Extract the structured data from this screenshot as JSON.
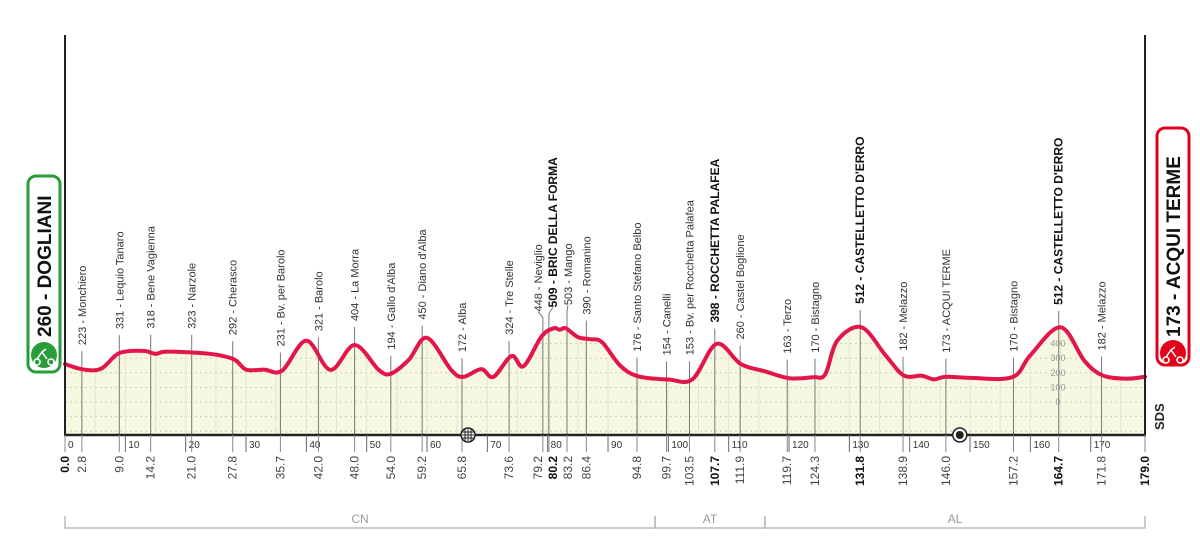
{
  "chart_data": {
    "type": "area",
    "xlabel": "",
    "ylabel": "",
    "xlim": [
      0,
      179
    ],
    "x_unit": "km",
    "y_unit": "m",
    "grid": true,
    "line_color": "#e2164a",
    "fill_color": "#f7f8e3",
    "x_ticks": [
      0,
      10,
      20,
      30,
      40,
      50,
      60,
      70,
      80,
      90,
      100,
      110,
      120,
      130,
      140,
      150,
      160,
      170
    ],
    "elevation_scale": [
      0,
      100,
      200,
      300,
      400
    ],
    "start": {
      "label": "260 - DOGLIANI",
      "color": "#2a9d3a",
      "icon": "cyclist-start-icon"
    },
    "finish": {
      "label": "173 - ACQUI TERME",
      "color": "#e2001a",
      "icon": "cyclist-finish-icon"
    },
    "waypoints": [
      {
        "km": 0.0,
        "km_label": "0.0",
        "elev": 260,
        "name": "",
        "bold": true
      },
      {
        "km": 2.8,
        "km_label": "2.8",
        "elev": 223,
        "label": "223 - Monchiero"
      },
      {
        "km": 9.0,
        "km_label": "9.0",
        "elev": 331,
        "label": "331 - Lequio Tanaro"
      },
      {
        "km": 14.2,
        "km_label": "14.2",
        "elev": 318,
        "label": "318 - Bene Vagienna"
      },
      {
        "km": 21.0,
        "km_label": "21.0",
        "elev": 323,
        "label": "323 - Narzole"
      },
      {
        "km": 27.8,
        "km_label": "27.8",
        "elev": 292,
        "label": "292 - Cherasco"
      },
      {
        "km": 35.7,
        "km_label": "35.7",
        "elev": 231,
        "label": "231 - Bv. per Barolo"
      },
      {
        "km": 42.0,
        "km_label": "42.0",
        "elev": 321,
        "label": "321 - Barolo"
      },
      {
        "km": 48.0,
        "km_label": "48.0",
        "elev": 404,
        "label": "404 - La Morra"
      },
      {
        "km": 54.0,
        "km_label": "54.0",
        "elev": 194,
        "label": "194 - Gallo d'Alba"
      },
      {
        "km": 59.2,
        "km_label": "59.2",
        "elev": 450,
        "label": "450 - Diano d'Alba"
      },
      {
        "km": 65.8,
        "km_label": "65.8",
        "elev": 172,
        "label": "172 - Alba"
      },
      {
        "km": 73.6,
        "km_label": "73.6",
        "elev": 324,
        "label": "324 - Tre Stelle"
      },
      {
        "km": 79.2,
        "km_label": "79.2",
        "elev": 448,
        "label": "448 - Neviglio"
      },
      {
        "km": 80.2,
        "km_label": "80.2",
        "elev": 509,
        "label": "509 - BRIC DELLA FORMA",
        "bold": true
      },
      {
        "km": 83.2,
        "km_label": "83.2",
        "elev": 503,
        "label": "503 - Mango"
      },
      {
        "km": 86.4,
        "km_label": "86.4",
        "elev": 390,
        "label": "390 - Romanino"
      },
      {
        "km": 94.8,
        "km_label": "94.8",
        "elev": 176,
        "label": "176 - Santo Stefano Belbo"
      },
      {
        "km": 99.7,
        "km_label": "99.7",
        "elev": 154,
        "label": "154 - Canelli"
      },
      {
        "km": 103.5,
        "km_label": "103.5",
        "elev": 153,
        "label": "153 - Bv. per Rocchetta Palafea"
      },
      {
        "km": 107.7,
        "km_label": "107.7",
        "elev": 398,
        "label": "398 - ROCCHETTA PALAFEA",
        "bold": true
      },
      {
        "km": 111.9,
        "km_label": "111.9",
        "elev": 260,
        "label": "260 - Castel Boglione"
      },
      {
        "km": 119.7,
        "km_label": "119.7",
        "elev": 163,
        "label": "163 - Terzo"
      },
      {
        "km": 124.3,
        "km_label": "124.3",
        "elev": 170,
        "label": "170 - Bistagno"
      },
      {
        "km": 131.8,
        "km_label": "131.8",
        "elev": 512,
        "label": "512 - CASTELLETTO D'ERRO",
        "bold": true
      },
      {
        "km": 138.9,
        "km_label": "138.9",
        "elev": 182,
        "label": "182 - Melazzo"
      },
      {
        "km": 146.0,
        "km_label": "146.0",
        "elev": 173,
        "label": "173 - ACQUI TERME"
      },
      {
        "km": 157.2,
        "km_label": "157.2",
        "elev": 170,
        "label": "170 - Bistagno"
      },
      {
        "km": 164.7,
        "km_label": "164.7",
        "elev": 512,
        "label": "512 - CASTELLETTO D'ERRO",
        "bold": true
      },
      {
        "km": 171.8,
        "km_label": "171.8",
        "elev": 182,
        "label": "182 - Melazzo"
      },
      {
        "km": 179.0,
        "km_label": "179.0",
        "elev": 173,
        "label": "",
        "bold": true
      }
    ],
    "profile": [
      [
        0,
        260
      ],
      [
        3,
        223
      ],
      [
        6,
        228
      ],
      [
        9,
        335
      ],
      [
        13,
        350
      ],
      [
        15,
        330
      ],
      [
        17,
        345
      ],
      [
        24,
        330
      ],
      [
        28,
        292
      ],
      [
        30,
        222
      ],
      [
        33,
        222
      ],
      [
        36,
        215
      ],
      [
        40,
        420
      ],
      [
        44,
        220
      ],
      [
        48,
        390
      ],
      [
        52,
        220
      ],
      [
        54,
        194
      ],
      [
        57,
        290
      ],
      [
        60,
        440
      ],
      [
        64,
        220
      ],
      [
        66,
        172
      ],
      [
        69,
        225
      ],
      [
        71,
        172
      ],
      [
        74,
        315
      ],
      [
        76,
        245
      ],
      [
        79,
        450
      ],
      [
        81,
        505
      ],
      [
        82,
        495
      ],
      [
        83,
        505
      ],
      [
        85,
        445
      ],
      [
        87,
        430
      ],
      [
        89,
        410
      ],
      [
        92,
        250
      ],
      [
        95,
        176
      ],
      [
        100,
        154
      ],
      [
        104,
        156
      ],
      [
        108,
        398
      ],
      [
        112,
        260
      ],
      [
        116,
        210
      ],
      [
        120,
        163
      ],
      [
        124,
        170
      ],
      [
        126,
        190
      ],
      [
        128,
        420
      ],
      [
        132,
        512
      ],
      [
        136,
        320
      ],
      [
        139,
        182
      ],
      [
        142,
        180
      ],
      [
        144,
        155
      ],
      [
        146,
        173
      ],
      [
        150,
        165
      ],
      [
        157,
        170
      ],
      [
        160,
        320
      ],
      [
        165,
        512
      ],
      [
        169,
        280
      ],
      [
        172,
        182
      ],
      [
        176,
        160
      ],
      [
        179,
        173
      ]
    ],
    "markers": [
      {
        "km": 66.8,
        "icon": "intermediate-sprint-icon"
      },
      {
        "km": 148.3,
        "icon": "feed-zone-icon"
      }
    ],
    "provinces": [
      {
        "label": "CN",
        "from_km": 0,
        "to_km": 97.8
      },
      {
        "label": "AT",
        "from_km": 97.8,
        "to_km": 116
      },
      {
        "label": "AL",
        "from_km": 116,
        "to_km": 179
      }
    ],
    "logo": "SDS"
  }
}
